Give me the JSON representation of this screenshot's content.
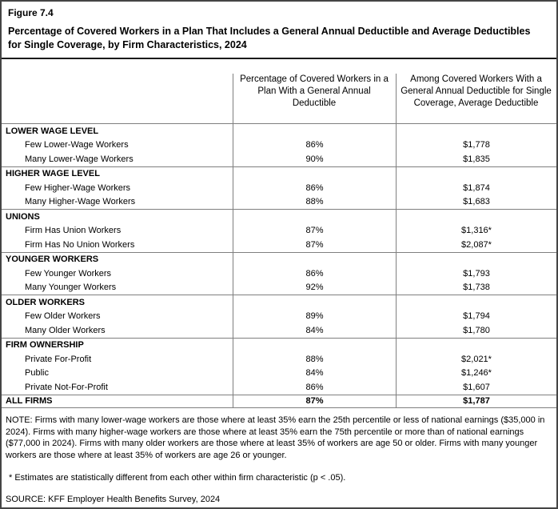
{
  "figure": {
    "label": "Figure 7.4",
    "title": "Percentage of Covered Workers in a Plan That Includes a General Annual Deductible and Average Deductibles for Single Coverage, by Firm Characteristics, 2024"
  },
  "chart_data": {
    "type": "table",
    "title": "Percentage of Covered Workers in a Plan That Includes a General Annual Deductible and Average Deductibles for Single Coverage, by Firm Characteristics, 2024",
    "columns": [
      "",
      "Percentage of Covered Workers in a Plan With a General Annual Deductible",
      "Among Covered Workers With a General Annual Deductible for Single Coverage, Average Deductible"
    ],
    "sections": [
      {
        "header": "LOWER WAGE LEVEL",
        "rows": [
          {
            "label": "Few Lower-Wage Workers",
            "pct": "86%",
            "deductible": "$1,778"
          },
          {
            "label": "Many Lower-Wage Workers",
            "pct": "90%",
            "deductible": "$1,835"
          }
        ]
      },
      {
        "header": "HIGHER WAGE LEVEL",
        "rows": [
          {
            "label": "Few Higher-Wage Workers",
            "pct": "86%",
            "deductible": "$1,874"
          },
          {
            "label": "Many Higher-Wage Workers",
            "pct": "88%",
            "deductible": "$1,683"
          }
        ]
      },
      {
        "header": "UNIONS",
        "rows": [
          {
            "label": "Firm Has Union Workers",
            "pct": "87%",
            "deductible": "$1,316*"
          },
          {
            "label": "Firm Has No Union Workers",
            "pct": "87%",
            "deductible": "$2,087*"
          }
        ]
      },
      {
        "header": "YOUNGER WORKERS",
        "rows": [
          {
            "label": "Few Younger Workers",
            "pct": "86%",
            "deductible": "$1,793"
          },
          {
            "label": "Many Younger Workers",
            "pct": "92%",
            "deductible": "$1,738"
          }
        ]
      },
      {
        "header": "OLDER WORKERS",
        "rows": [
          {
            "label": "Few Older Workers",
            "pct": "89%",
            "deductible": "$1,794"
          },
          {
            "label": "Many Older Workers",
            "pct": "84%",
            "deductible": "$1,780"
          }
        ]
      },
      {
        "header": "FIRM OWNERSHIP",
        "rows": [
          {
            "label": "Private For-Profit",
            "pct": "88%",
            "deductible": "$2,021*"
          },
          {
            "label": "Public",
            "pct": "84%",
            "deductible": "$1,246*"
          },
          {
            "label": "Private Not-For-Profit",
            "pct": "86%",
            "deductible": "$1,607"
          }
        ]
      }
    ],
    "total_row": {
      "label": "ALL FIRMS",
      "pct": "87%",
      "deductible": "$1,787"
    }
  },
  "notes": {
    "note": "NOTE: Firms with many lower-wage workers are those where at least 35% earn the 25th percentile or less of national earnings ($35,000 in 2024). Firms with many higher-wage workers are those where at least 35% earn the 75th percentile or more than of national earnings ($77,000 in 2024). Firms with many older workers are those where at least 35% of workers are age 50 or older. Firms with many younger workers are those where at least 35% of workers are age 26 or younger.",
    "asterisk": "* Estimates are statistically different from each other within firm characteristic (p < .05).",
    "source": "SOURCE: KFF Employer Health Benefits Survey, 2024"
  }
}
